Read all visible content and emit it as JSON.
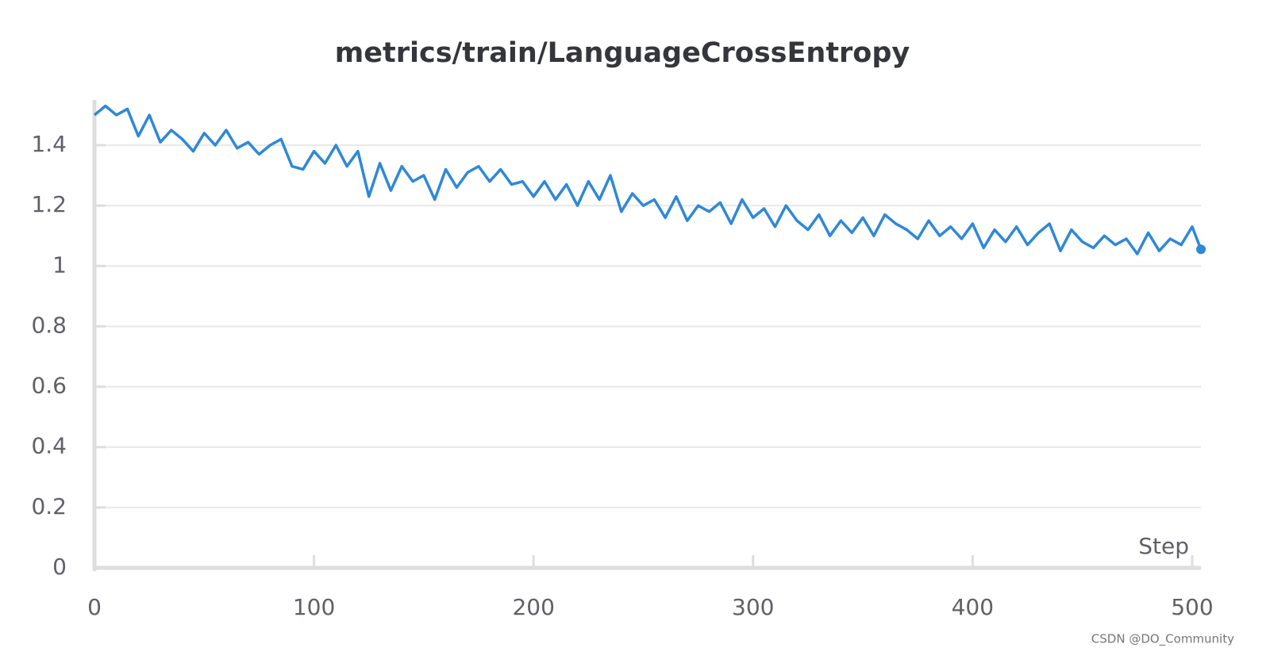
{
  "chart_data": {
    "type": "line",
    "title": "metrics/train/LanguageCrossEntropy",
    "x_label": "Step",
    "watermark": "CSDN @DO_Community",
    "xlim": [
      0,
      504
    ],
    "xticks": [
      0,
      100,
      200,
      300,
      400,
      500
    ],
    "ylim": [
      0,
      1.55
    ],
    "yticks": [
      0,
      0.2,
      0.4,
      0.6,
      0.8,
      1,
      1.2,
      1.4
    ],
    "grid": true,
    "x": [
      0,
      5,
      10,
      15,
      20,
      25,
      30,
      35,
      40,
      45,
      50,
      55,
      60,
      65,
      70,
      75,
      80,
      85,
      90,
      95,
      100,
      105,
      110,
      115,
      120,
      125,
      130,
      135,
      140,
      145,
      150,
      155,
      160,
      165,
      170,
      175,
      180,
      185,
      190,
      195,
      200,
      205,
      210,
      215,
      220,
      225,
      230,
      235,
      240,
      245,
      250,
      255,
      260,
      265,
      270,
      275,
      280,
      285,
      290,
      295,
      300,
      305,
      310,
      315,
      320,
      325,
      330,
      335,
      340,
      345,
      350,
      355,
      360,
      365,
      370,
      375,
      380,
      385,
      390,
      395,
      400,
      405,
      410,
      415,
      420,
      425,
      430,
      435,
      440,
      445,
      450,
      455,
      460,
      465,
      470,
      475,
      480,
      485,
      490,
      495,
      500,
      504
    ],
    "series": [
      {
        "name": "LanguageCrossEntropy",
        "color": "#2f88d8",
        "values": [
          1.5,
          1.53,
          1.5,
          1.52,
          1.43,
          1.5,
          1.41,
          1.45,
          1.42,
          1.38,
          1.44,
          1.4,
          1.45,
          1.39,
          1.41,
          1.37,
          1.4,
          1.42,
          1.33,
          1.32,
          1.38,
          1.34,
          1.4,
          1.33,
          1.38,
          1.23,
          1.34,
          1.25,
          1.33,
          1.28,
          1.3,
          1.22,
          1.32,
          1.26,
          1.31,
          1.33,
          1.28,
          1.32,
          1.27,
          1.28,
          1.23,
          1.28,
          1.22,
          1.27,
          1.2,
          1.28,
          1.22,
          1.3,
          1.18,
          1.24,
          1.2,
          1.22,
          1.16,
          1.23,
          1.15,
          1.2,
          1.18,
          1.21,
          1.14,
          1.22,
          1.16,
          1.19,
          1.13,
          1.2,
          1.15,
          1.12,
          1.17,
          1.1,
          1.15,
          1.11,
          1.16,
          1.1,
          1.17,
          1.14,
          1.12,
          1.09,
          1.15,
          1.1,
          1.13,
          1.09,
          1.14,
          1.06,
          1.12,
          1.08,
          1.13,
          1.07,
          1.11,
          1.14,
          1.05,
          1.12,
          1.08,
          1.06,
          1.1,
          1.07,
          1.09,
          1.04,
          1.11,
          1.05,
          1.09,
          1.07,
          1.13,
          1.055
        ]
      }
    ]
  }
}
